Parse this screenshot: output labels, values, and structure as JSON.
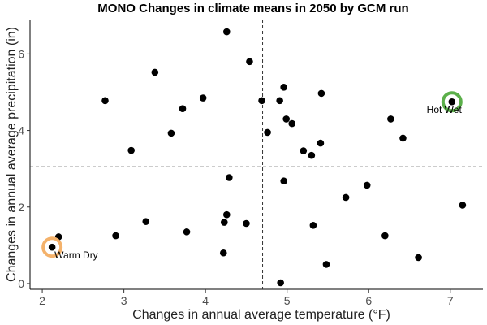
{
  "chart_data": {
    "type": "scatter",
    "title": "MONO Changes in climate means in 2050 by GCM run",
    "xlabel": "Changes in annual average temperature (°F)",
    "ylabel": "Changes in annual average precipitation (in)",
    "xlim": [
      1.85,
      7.4
    ],
    "ylim": [
      -0.15,
      6.9
    ],
    "xticks": [
      2,
      3,
      4,
      5,
      6,
      7
    ],
    "yticks": [
      0,
      2,
      4,
      6
    ],
    "grid": false,
    "reference_lines": {
      "x": 4.7,
      "y": 3.05
    },
    "point_color": "#000000",
    "points": [
      {
        "x": 2.12,
        "y": 0.95
      },
      {
        "x": 2.2,
        "y": 1.22
      },
      {
        "x": 2.77,
        "y": 4.78
      },
      {
        "x": 2.9,
        "y": 1.25
      },
      {
        "x": 3.09,
        "y": 3.48
      },
      {
        "x": 3.27,
        "y": 1.62
      },
      {
        "x": 3.38,
        "y": 5.52
      },
      {
        "x": 3.58,
        "y": 3.93
      },
      {
        "x": 3.72,
        "y": 4.57
      },
      {
        "x": 3.77,
        "y": 1.35
      },
      {
        "x": 3.97,
        "y": 4.85
      },
      {
        "x": 4.22,
        "y": 0.8
      },
      {
        "x": 4.23,
        "y": 1.6
      },
      {
        "x": 4.26,
        "y": 1.8
      },
      {
        "x": 4.26,
        "y": 6.58
      },
      {
        "x": 4.29,
        "y": 2.77
      },
      {
        "x": 4.5,
        "y": 1.57
      },
      {
        "x": 4.54,
        "y": 5.8
      },
      {
        "x": 4.69,
        "y": 4.78
      },
      {
        "x": 4.76,
        "y": 3.95
      },
      {
        "x": 4.91,
        "y": 4.78
      },
      {
        "x": 4.92,
        "y": 0.02
      },
      {
        "x": 4.96,
        "y": 5.13
      },
      {
        "x": 4.96,
        "y": 2.68
      },
      {
        "x": 4.99,
        "y": 4.3
      },
      {
        "x": 5.06,
        "y": 4.18
      },
      {
        "x": 5.2,
        "y": 3.47
      },
      {
        "x": 5.3,
        "y": 3.35
      },
      {
        "x": 5.32,
        "y": 1.52
      },
      {
        "x": 5.41,
        "y": 3.67
      },
      {
        "x": 5.42,
        "y": 4.97
      },
      {
        "x": 5.48,
        "y": 0.5
      },
      {
        "x": 5.72,
        "y": 2.25
      },
      {
        "x": 5.98,
        "y": 2.57
      },
      {
        "x": 6.2,
        "y": 1.25
      },
      {
        "x": 6.27,
        "y": 4.3
      },
      {
        "x": 6.42,
        "y": 3.8
      },
      {
        "x": 6.61,
        "y": 0.68
      },
      {
        "x": 7.02,
        "y": 4.75
      },
      {
        "x": 7.15,
        "y": 2.05
      }
    ],
    "annotations": [
      {
        "label": "Warm Dry",
        "x": 2.12,
        "y": 0.95,
        "ring_color": "#F4B26B"
      },
      {
        "label": "Hot Wet",
        "x": 7.02,
        "y": 4.75,
        "ring_color": "#5BAF4A"
      }
    ]
  }
}
